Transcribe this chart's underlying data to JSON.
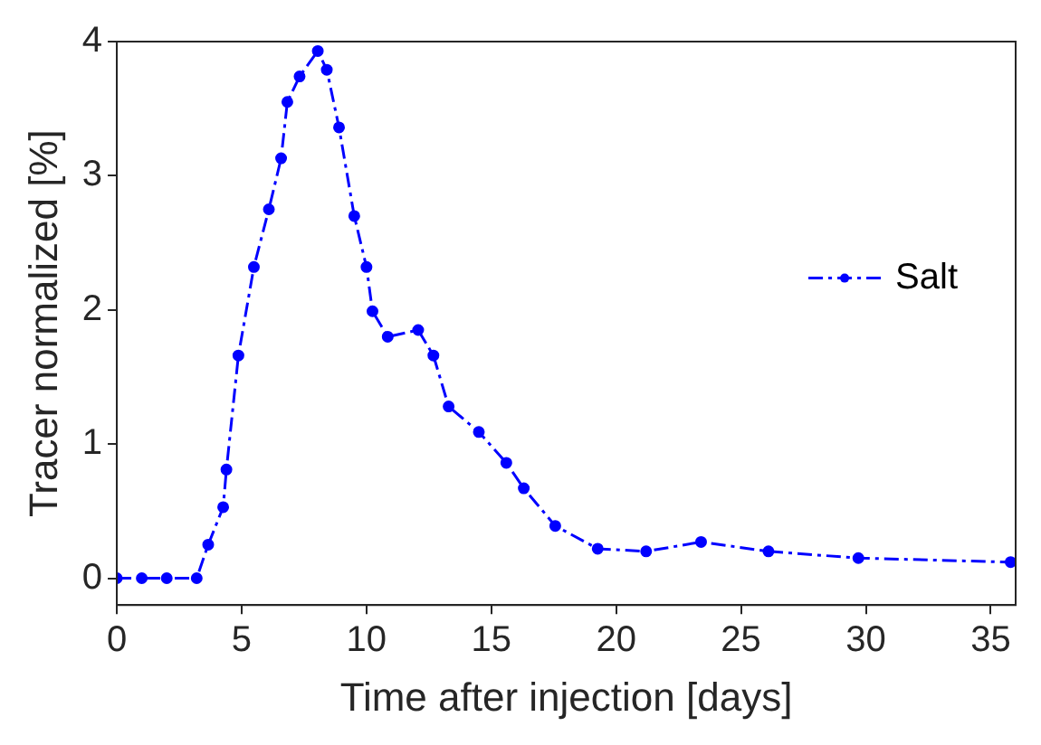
{
  "chart_data": {
    "type": "line",
    "xlabel": "Time after injection [days]",
    "ylabel": "Tracer normalized [%]",
    "xlim": [
      0,
      36
    ],
    "ylim": [
      -0.2,
      4
    ],
    "xticks": [
      0,
      5,
      10,
      15,
      20,
      25,
      30,
      35
    ],
    "yticks": [
      0,
      1,
      2,
      3,
      4
    ],
    "grid": false,
    "legend": "right",
    "marker": "circle",
    "line_style": "dashdot",
    "series": [
      {
        "name": "Salt",
        "color": "#0000ff",
        "x": [
          0,
          1,
          2,
          3.2,
          3.66,
          4.26,
          4.39,
          4.87,
          5.49,
          6.09,
          6.58,
          6.83,
          7.32,
          8.05,
          8.41,
          8.9,
          9.51,
          10.0,
          10.24,
          10.85,
          12.07,
          12.68,
          13.29,
          14.5,
          15.6,
          16.3,
          17.56,
          19.26,
          21.2,
          23.4,
          26.1,
          29.7,
          35.8
        ],
        "values": [
          0,
          0,
          0,
          0,
          0.25,
          0.53,
          0.81,
          1.66,
          2.32,
          2.75,
          3.13,
          3.55,
          3.74,
          3.93,
          3.79,
          3.36,
          2.7,
          2.32,
          1.99,
          1.8,
          1.85,
          1.66,
          1.28,
          1.09,
          0.86,
          0.67,
          0.39,
          0.22,
          0.2,
          0.27,
          0.2,
          0.15,
          0.12
        ]
      }
    ]
  }
}
